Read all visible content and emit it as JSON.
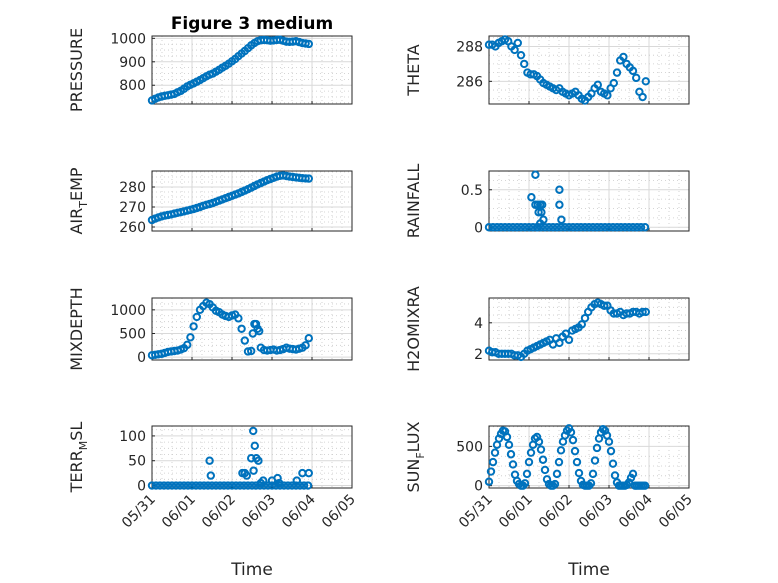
{
  "figure_title": "Figure 3 medium",
  "colors": {
    "marker": "#0072BD",
    "axes": "#262626",
    "grid": "#d9d9d9"
  },
  "chart_data": [
    {
      "type": "scatter",
      "panel": "top-left",
      "title": "Figure 3 medium",
      "ylabel": "PRESSURE",
      "xlabel": "",
      "ylim": [
        720,
        1010
      ],
      "yticks": [
        800,
        900,
        1000
      ],
      "xlim": [
        0,
        5
      ],
      "x": [
        0.0,
        0.08,
        0.16,
        0.24,
        0.32,
        0.4,
        0.48,
        0.56,
        0.64,
        0.72,
        0.8,
        0.88,
        0.96,
        1.04,
        1.12,
        1.2,
        1.28,
        1.36,
        1.44,
        1.52,
        1.6,
        1.68,
        1.76,
        1.84,
        1.92,
        2.0,
        2.08,
        2.16,
        2.24,
        2.32,
        2.4,
        2.48,
        2.56,
        2.64,
        2.72,
        2.8,
        2.88,
        2.96,
        3.04,
        3.12,
        3.2,
        3.28,
        3.36,
        3.44,
        3.52,
        3.6,
        3.68,
        3.76,
        3.84,
        3.92
      ],
      "y": [
        735,
        742,
        748,
        752,
        755,
        757,
        760,
        763,
        770,
        776,
        785,
        795,
        802,
        808,
        815,
        822,
        830,
        838,
        845,
        850,
        858,
        866,
        875,
        883,
        892,
        902,
        912,
        924,
        935,
        946,
        958,
        970,
        980,
        988,
        992,
        993,
        992,
        990,
        991,
        993,
        994,
        990,
        986,
        985,
        986,
        988,
        984,
        980,
        978,
        976
      ]
    },
    {
      "type": "scatter",
      "panel": "top-right",
      "ylabel": "THETA",
      "ylim": [
        284.7,
        288.6
      ],
      "yticks": [
        286,
        288
      ],
      "xlim": [
        0,
        5
      ],
      "x": [
        0.0,
        0.08,
        0.16,
        0.24,
        0.32,
        0.4,
        0.48,
        0.56,
        0.64,
        0.72,
        0.8,
        0.88,
        0.96,
        1.04,
        1.12,
        1.2,
        1.28,
        1.36,
        1.44,
        1.52,
        1.6,
        1.68,
        1.76,
        1.84,
        1.92,
        2.0,
        2.08,
        2.16,
        2.24,
        2.32,
        2.4,
        2.48,
        2.56,
        2.64,
        2.72,
        2.8,
        2.88,
        2.96,
        3.04,
        3.12,
        3.2,
        3.28,
        3.36,
        3.44,
        3.52,
        3.6,
        3.68,
        3.76,
        3.84,
        3.92
      ],
      "y": [
        288.1,
        288.1,
        288.0,
        288.2,
        288.3,
        288.4,
        288.3,
        288.0,
        287.8,
        288.2,
        287.5,
        287.0,
        286.5,
        286.4,
        286.4,
        286.3,
        286.1,
        285.9,
        285.8,
        285.7,
        285.6,
        285.5,
        285.6,
        285.4,
        285.3,
        285.2,
        285.3,
        285.4,
        285.2,
        285.0,
        284.9,
        285.1,
        285.3,
        285.6,
        285.8,
        285.4,
        285.3,
        285.2,
        285.6,
        285.9,
        286.5,
        287.2,
        287.4,
        287.0,
        286.8,
        286.6,
        286.2,
        285.4,
        285.1,
        286.0
      ]
    },
    {
      "type": "scatter",
      "panel": "mid-top-left",
      "ylabel": "AIR_TEMP",
      "ylim": [
        258,
        288
      ],
      "yticks": [
        260,
        270,
        280
      ],
      "xlim": [
        0,
        5
      ],
      "x": [
        0.0,
        0.08,
        0.16,
        0.24,
        0.32,
        0.4,
        0.48,
        0.56,
        0.64,
        0.72,
        0.8,
        0.88,
        0.96,
        1.04,
        1.12,
        1.2,
        1.28,
        1.36,
        1.44,
        1.52,
        1.6,
        1.68,
        1.76,
        1.84,
        1.92,
        2.0,
        2.08,
        2.16,
        2.24,
        2.32,
        2.4,
        2.48,
        2.56,
        2.64,
        2.72,
        2.8,
        2.88,
        2.96,
        3.04,
        3.12,
        3.2,
        3.28,
        3.36,
        3.44,
        3.52,
        3.6,
        3.68,
        3.76,
        3.84,
        3.92
      ],
      "y": [
        263.5,
        264.2,
        264.8,
        265.3,
        265.7,
        266.0,
        266.3,
        266.7,
        267.1,
        267.4,
        267.8,
        268.2,
        268.6,
        269.0,
        269.5,
        270.0,
        270.6,
        271.1,
        271.5,
        272.0,
        272.6,
        273.2,
        273.8,
        274.4,
        275.0,
        275.6,
        276.2,
        276.8,
        277.5,
        278.2,
        278.9,
        279.7,
        280.5,
        281.3,
        282.0,
        282.7,
        283.4,
        284.0,
        284.6,
        285.2,
        285.6,
        285.8,
        285.5,
        285.2,
        285.0,
        284.8,
        284.6,
        284.4,
        284.3,
        284.2
      ]
    },
    {
      "type": "scatter",
      "panel": "mid-top-right",
      "ylabel": "RAINFALL",
      "ylim": [
        -0.05,
        0.75
      ],
      "yticks": [
        0,
        0.5
      ],
      "xlim": [
        0,
        5
      ],
      "x": [
        0.0,
        0.1,
        0.2,
        0.3,
        0.4,
        0.5,
        0.6,
        0.7,
        0.8,
        0.9,
        1.0,
        1.1,
        1.2,
        1.3,
        1.4,
        1.5,
        1.6,
        1.7,
        1.8,
        1.9,
        2.0,
        2.1,
        2.2,
        2.3,
        2.4,
        2.5,
        2.6,
        2.7,
        2.8,
        2.9,
        3.0,
        3.1,
        3.2,
        3.3,
        3.4,
        3.5,
        3.6,
        3.7,
        3.8,
        3.9,
        1.06,
        1.16,
        1.16,
        1.22,
        1.24,
        1.28,
        1.31,
        1.33,
        1.36,
        1.76,
        1.76,
        1.81,
        1.21,
        1.28
      ],
      "y": [
        0,
        0,
        0,
        0,
        0,
        0,
        0,
        0,
        0,
        0,
        0,
        0,
        0,
        0,
        0,
        0,
        0,
        0,
        0,
        0,
        0,
        0,
        0,
        0,
        0,
        0,
        0,
        0,
        0,
        0,
        0,
        0,
        0,
        0,
        0,
        0,
        0,
        0,
        0,
        0,
        0.4,
        0.3,
        0.7,
        0.3,
        0.2,
        0.3,
        0.2,
        0.3,
        0.1,
        0.5,
        0.3,
        0.1,
        0.0,
        0.05
      ]
    },
    {
      "type": "scatter",
      "panel": "mid-bottom-left",
      "ylabel": "MIXDEPTH",
      "ylim": [
        -60,
        1250
      ],
      "yticks": [
        0,
        500,
        1000
      ],
      "xlim": [
        0,
        5
      ],
      "x": [
        0.0,
        0.08,
        0.16,
        0.24,
        0.32,
        0.4,
        0.48,
        0.56,
        0.64,
        0.72,
        0.8,
        0.88,
        0.96,
        1.04,
        1.12,
        1.2,
        1.28,
        1.36,
        1.44,
        1.52,
        1.6,
        1.68,
        1.76,
        1.84,
        1.92,
        2.0,
        2.08,
        2.16,
        2.24,
        2.32,
        2.4,
        2.48,
        2.56,
        2.64,
        2.72,
        2.8,
        2.88,
        2.96,
        3.04,
        3.12,
        3.2,
        3.28,
        3.36,
        3.44,
        3.52,
        3.6,
        3.68,
        3.76,
        3.84,
        3.92,
        2.52,
        2.6,
        2.68
      ],
      "y": [
        40,
        50,
        60,
        70,
        90,
        110,
        120,
        130,
        140,
        160,
        190,
        260,
        420,
        650,
        850,
        1000,
        1080,
        1150,
        1120,
        1050,
        980,
        950,
        900,
        870,
        850,
        880,
        900,
        820,
        600,
        350,
        120,
        130,
        700,
        600,
        200,
        150,
        140,
        150,
        160,
        140,
        150,
        170,
        200,
        180,
        170,
        160,
        180,
        200,
        250,
        400,
        500,
        700,
        550
      ]
    },
    {
      "type": "scatter",
      "panel": "mid-bottom-right",
      "ylabel": "H2OMIXRA",
      "ylim": [
        1.6,
        5.6
      ],
      "yticks": [
        2,
        4
      ],
      "xlim": [
        0,
        5
      ],
      "x": [
        0.0,
        0.08,
        0.16,
        0.24,
        0.32,
        0.4,
        0.48,
        0.56,
        0.64,
        0.72,
        0.8,
        0.88,
        0.96,
        1.04,
        1.12,
        1.2,
        1.28,
        1.36,
        1.44,
        1.52,
        1.6,
        1.68,
        1.76,
        1.84,
        1.92,
        2.0,
        2.08,
        2.16,
        2.24,
        2.32,
        2.4,
        2.48,
        2.56,
        2.64,
        2.72,
        2.8,
        2.88,
        2.96,
        3.04,
        3.12,
        3.2,
        3.28,
        3.36,
        3.44,
        3.52,
        3.6,
        3.68,
        3.76,
        3.84,
        3.92
      ],
      "y": [
        2.2,
        2.1,
        2.1,
        2.0,
        2.0,
        2.0,
        2.0,
        2.0,
        1.9,
        1.9,
        1.8,
        2.0,
        2.2,
        2.3,
        2.4,
        2.5,
        2.6,
        2.7,
        2.8,
        2.9,
        2.6,
        3.0,
        2.7,
        3.1,
        3.3,
        2.9,
        3.5,
        3.6,
        3.7,
        3.9,
        4.3,
        4.7,
        5.0,
        5.2,
        5.3,
        5.2,
        5.1,
        5.1,
        4.8,
        4.6,
        4.6,
        4.7,
        4.5,
        4.6,
        4.6,
        4.7,
        4.7,
        4.6,
        4.7,
        4.7
      ]
    },
    {
      "type": "scatter",
      "panel": "bottom-left",
      "ylabel": "TERR_MSL",
      "xlabel": "Time",
      "ylim": [
        -5,
        120
      ],
      "yticks": [
        0,
        50,
        100
      ],
      "xlim": [
        0,
        5
      ],
      "xticks": [
        "05/31",
        "06/01",
        "06/02",
        "06/03",
        "06/04",
        "06/05"
      ],
      "x": [
        0.0,
        0.1,
        0.2,
        0.3,
        0.4,
        0.5,
        0.6,
        0.7,
        0.8,
        0.9,
        1.0,
        1.1,
        1.2,
        1.3,
        1.4,
        1.5,
        1.6,
        1.7,
        1.8,
        1.9,
        2.0,
        2.1,
        2.2,
        2.3,
        2.4,
        2.5,
        2.6,
        2.7,
        2.8,
        2.9,
        3.0,
        3.1,
        3.2,
        3.3,
        3.4,
        3.5,
        3.6,
        3.7,
        3.8,
        3.9,
        1.44,
        1.47,
        2.26,
        2.32,
        2.37,
        2.48,
        2.53,
        2.57,
        2.61,
        2.66,
        2.54,
        2.72,
        2.78,
        3.0,
        3.14,
        3.18,
        3.62,
        3.76,
        3.92
      ],
      "y": [
        0,
        0,
        0,
        0,
        0,
        0,
        0,
        0,
        0,
        0,
        0,
        0,
        0,
        0,
        0,
        0,
        0,
        0,
        0,
        0,
        0,
        0,
        0,
        0,
        0,
        0,
        0,
        0,
        0,
        0,
        0,
        0,
        0,
        0,
        0,
        0,
        0,
        0,
        0,
        0,
        50,
        20,
        25,
        25,
        20,
        55,
        110,
        80,
        55,
        50,
        30,
        5,
        10,
        10,
        15,
        5,
        10,
        25,
        25
      ]
    },
    {
      "type": "scatter",
      "panel": "bottom-right",
      "ylabel": "SUN_FLUX",
      "xlabel": "Time",
      "ylim": [
        -30,
        760
      ],
      "yticks": [
        0,
        500
      ],
      "xlim": [
        0,
        5
      ],
      "xticks": [
        "05/31",
        "06/01",
        "06/02",
        "06/03",
        "06/04",
        "06/05"
      ],
      "x": [
        0.0,
        0.05,
        0.1,
        0.15,
        0.2,
        0.25,
        0.3,
        0.35,
        0.4,
        0.45,
        0.5,
        0.55,
        0.6,
        0.65,
        0.7,
        0.75,
        0.8,
        0.85,
        0.9,
        0.95,
        1.0,
        1.05,
        1.1,
        1.15,
        1.2,
        1.25,
        1.3,
        1.35,
        1.4,
        1.45,
        1.5,
        1.55,
        1.6,
        1.65,
        1.7,
        1.75,
        1.8,
        1.85,
        1.9,
        1.95,
        2.0,
        2.05,
        2.1,
        2.15,
        2.2,
        2.25,
        2.3,
        2.35,
        2.4,
        2.45,
        2.5,
        2.55,
        2.6,
        2.65,
        2.7,
        2.75,
        2.8,
        2.85,
        2.9,
        2.95,
        3.0,
        3.05,
        3.1,
        3.15,
        3.2,
        3.25,
        3.3,
        3.35,
        3.4,
        3.45,
        3.5,
        3.55,
        3.6,
        3.65,
        3.7,
        3.75,
        3.8,
        3.85,
        3.9
      ],
      "y": [
        50,
        180,
        300,
        420,
        520,
        600,
        660,
        700,
        690,
        620,
        520,
        400,
        270,
        140,
        60,
        20,
        0,
        0,
        30,
        150,
        300,
        420,
        520,
        600,
        620,
        560,
        460,
        330,
        200,
        80,
        20,
        0,
        0,
        20,
        150,
        300,
        450,
        560,
        640,
        700,
        730,
        680,
        580,
        440,
        300,
        160,
        60,
        10,
        0,
        0,
        0,
        30,
        150,
        320,
        480,
        600,
        680,
        720,
        700,
        640,
        560,
        440,
        280,
        130,
        40,
        0,
        0,
        0,
        0,
        10,
        40,
        100,
        150,
        0,
        0,
        0,
        0,
        0,
        0
      ]
    }
  ]
}
